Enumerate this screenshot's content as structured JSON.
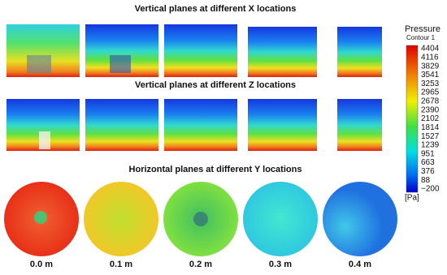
{
  "figure": {
    "rows": [
      {
        "title": "Vertical planes at different X locations"
      },
      {
        "title": "Vertical planes at different Z locations"
      },
      {
        "title": "Horizontal planes at different Y locations",
        "labels": [
          "0.0 m",
          "0.1 m",
          "0.2 m",
          "0.3 m",
          "0.4 m"
        ]
      }
    ],
    "colorbar": {
      "title": "Pressure",
      "subtitle": "Contour 1",
      "unit": "[Pa]",
      "labels": [
        4404,
        4116,
        3829,
        3541,
        3253,
        2965,
        2678,
        2390,
        2102,
        1814,
        1527,
        1239,
        951,
        663,
        376,
        88,
        {
          "value": -200,
          "label": "−200"
        }
      ]
    }
  }
}
